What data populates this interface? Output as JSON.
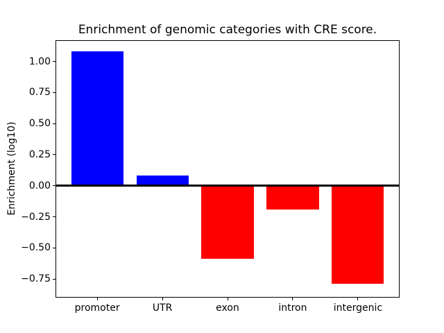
{
  "chart_data": {
    "type": "bar",
    "title": "Enrichment of genomic categories with CRE score.",
    "xlabel": "",
    "ylabel": "Enrichment (log10)",
    "categories": [
      "promoter",
      "UTR",
      "exon",
      "intron",
      "intergenic"
    ],
    "values": [
      1.08,
      0.08,
      -0.59,
      -0.19,
      -0.79
    ],
    "bar_colors": [
      "#0000ff",
      "#0000ff",
      "#ff0000",
      "#ff0000",
      "#ff0000"
    ],
    "positive_color": "#0000ff",
    "negative_color": "#ff0000",
    "ylim": [
      -0.9,
      1.17
    ],
    "yticks": [
      1.0,
      0.75,
      0.5,
      0.25,
      0.0,
      -0.25,
      -0.5,
      -0.75
    ],
    "ytick_labels": [
      "1.00",
      "0.75",
      "0.50",
      "0.25",
      "0.00",
      "−0.25",
      "−0.50",
      "−0.75"
    ],
    "bar_width_fraction": 0.8,
    "zero_line": true,
    "grid": false,
    "legend_position": "none",
    "axis_color": "#000000",
    "background_color": "#ffffff"
  }
}
